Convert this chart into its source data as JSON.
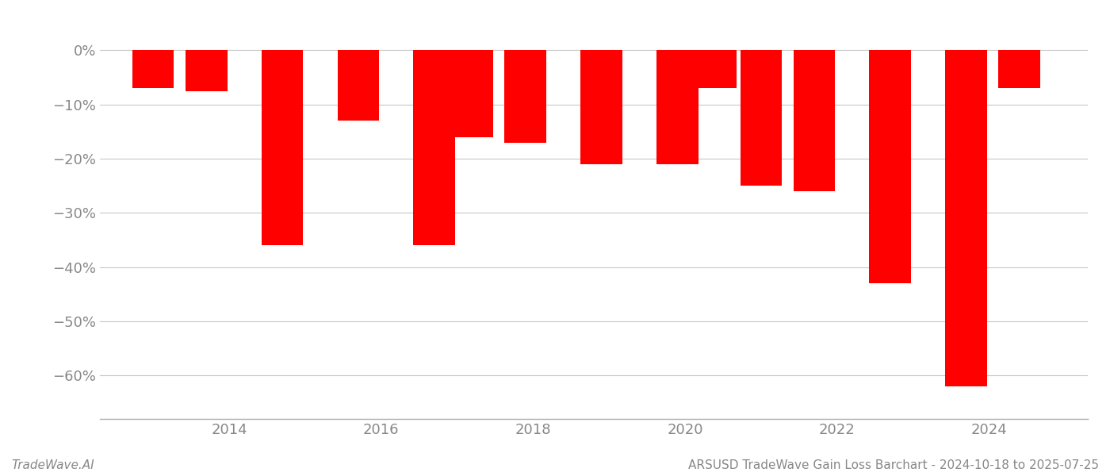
{
  "years": [
    2013.0,
    2013.7,
    2014.7,
    2015.7,
    2016.7,
    2017.2,
    2017.9,
    2018.9,
    2019.9,
    2020.4,
    2021.0,
    2021.7,
    2022.7,
    2023.7,
    2024.4
  ],
  "values": [
    -7.0,
    -7.5,
    -36.0,
    -13.0,
    -36.0,
    -16.0,
    -17.0,
    -21.0,
    -21.0,
    -7.0,
    -25.0,
    -26.0,
    -43.0,
    -62.0,
    -7.0
  ],
  "bar_color": "#ff0000",
  "background_color": "#ffffff",
  "grid_color": "#c8c8c8",
  "axis_label_color": "#888888",
  "ylabel_values": [
    0,
    -10,
    -20,
    -30,
    -40,
    -50,
    -60
  ],
  "xtick_years": [
    2014,
    2016,
    2018,
    2020,
    2022,
    2024
  ],
  "ylim": [
    -68,
    4
  ],
  "xlim": [
    2012.3,
    2025.3
  ],
  "footer_left": "TradeWave.AI",
  "footer_right": "ARSUSD TradeWave Gain Loss Barchart - 2024-10-18 to 2025-07-25",
  "bar_width": 0.55,
  "figsize": [
    14.0,
    6.0
  ],
  "dpi": 100
}
